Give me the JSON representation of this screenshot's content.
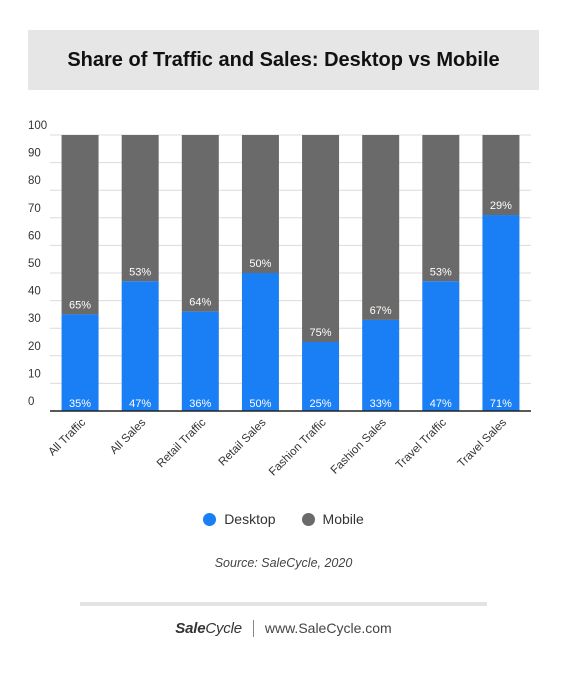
{
  "title": "Share of Traffic and Sales: Desktop vs Mobile",
  "colors": {
    "desktop": "#1a7ef5",
    "mobile": "#6a6a6a",
    "grid": "#dcdcdc",
    "axis": "#222222"
  },
  "legend": {
    "desktop": "Desktop",
    "mobile": "Mobile"
  },
  "source": "Source: SaleCycle, 2020",
  "footer": {
    "brand_bold": "Sale",
    "brand_rest": "Cycle",
    "url": "www.SaleCycle.com"
  },
  "chart_data": {
    "type": "bar",
    "stacked": true,
    "categories": [
      "All Traffic",
      "All Sales",
      "Retail Traffic",
      "Retail Sales",
      "Fashion Traffic",
      "Fashion Sales",
      "Travel Traffic",
      "Travel Sales"
    ],
    "series": [
      {
        "name": "Desktop",
        "values": [
          35,
          47,
          36,
          50,
          25,
          33,
          47,
          71
        ],
        "labels": [
          "35%",
          "47%",
          "36%",
          "50%",
          "25%",
          "33%",
          "47%",
          "71%"
        ]
      },
      {
        "name": "Mobile",
        "values": [
          65,
          53,
          64,
          50,
          75,
          67,
          53,
          29
        ],
        "labels": [
          "65%",
          "53%",
          "64%",
          "50%",
          "75%",
          "67%",
          "53%",
          "29%"
        ]
      }
    ],
    "ylim": [
      0,
      100
    ],
    "yticks": [
      "0",
      "10",
      "20",
      "30",
      "40",
      "50",
      "60",
      "70",
      "80",
      "90",
      "100"
    ],
    "grid": true,
    "legend_position": "bottom"
  }
}
